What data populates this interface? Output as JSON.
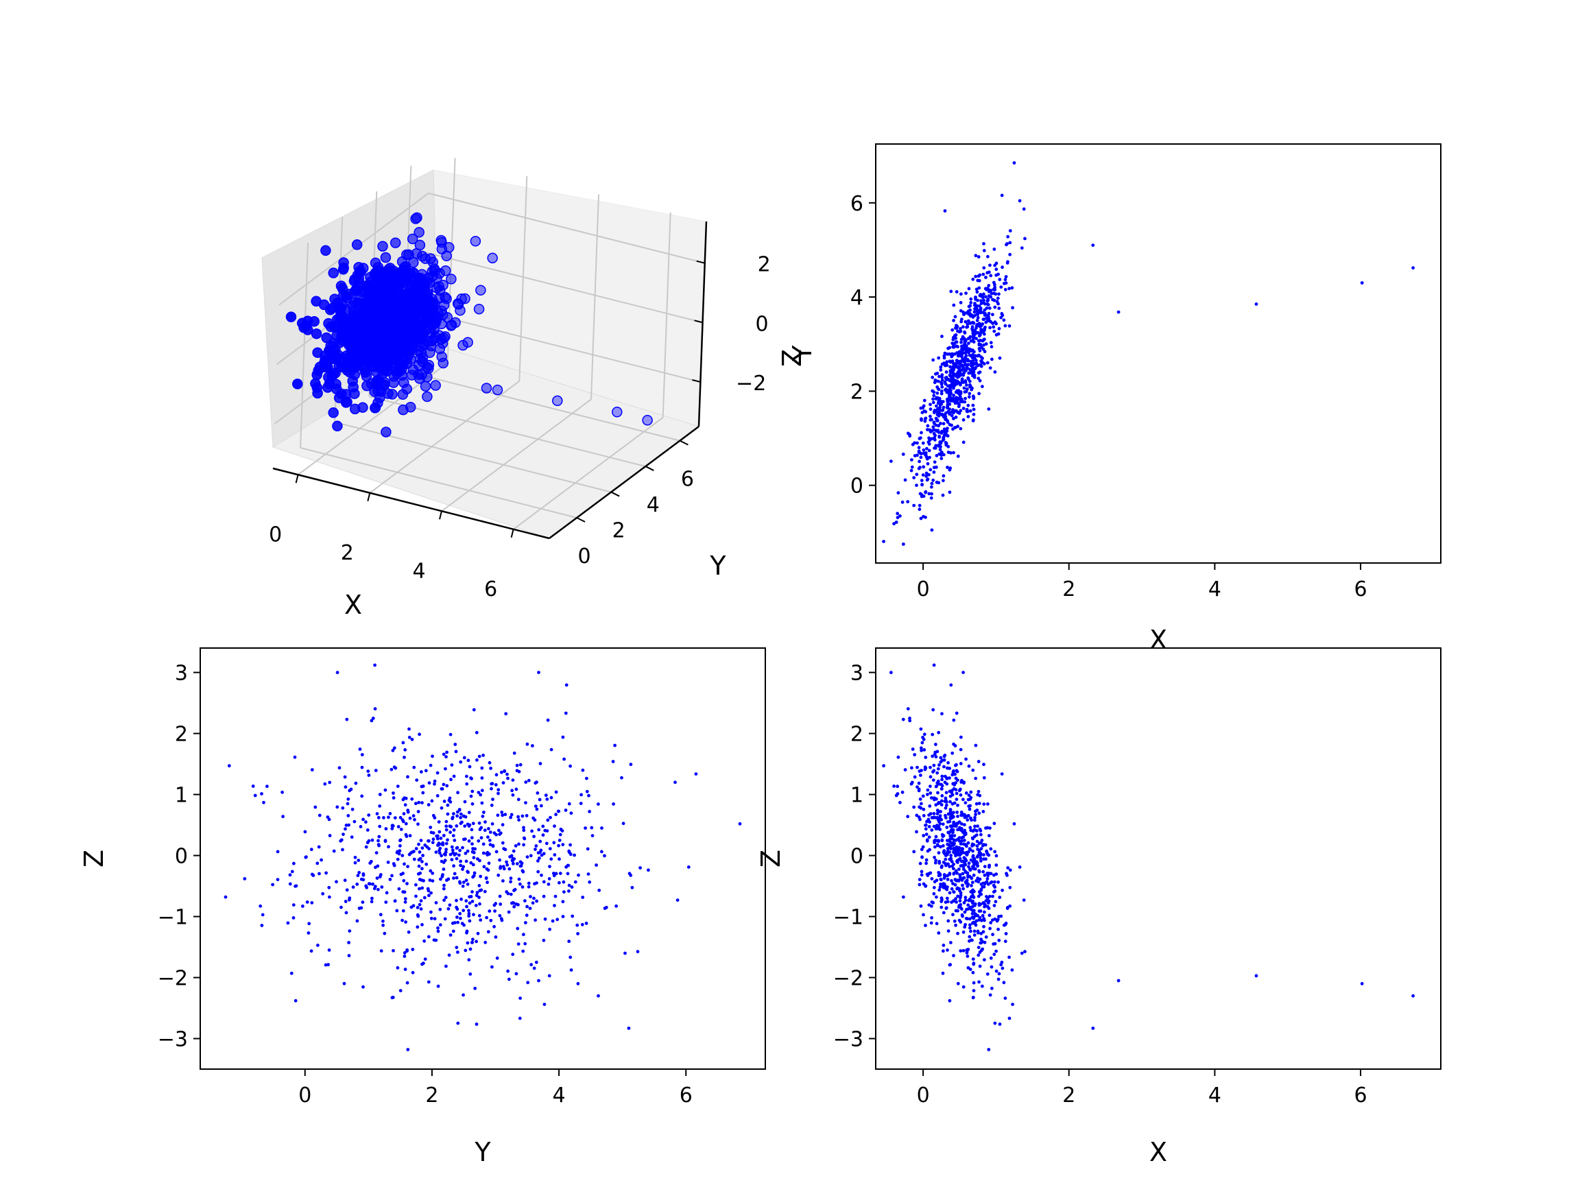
{
  "chart_data": [
    {
      "id": "p3d",
      "type": "scatter3d",
      "xlabel": "X",
      "ylabel": "Y",
      "zlabel": "Z",
      "x_ticks": [
        0,
        2,
        4,
        6
      ],
      "y_ticks": [
        0,
        2,
        4,
        6
      ],
      "z_ticks": [
        -2,
        0,
        2
      ],
      "z_tick_labels": [
        "−2",
        "0",
        "2"
      ],
      "xlim": [
        -0.7,
        7.0
      ],
      "ylim": [
        -1.6,
        7.1
      ],
      "zlim": [
        -3.5,
        3.4
      ],
      "color": "#0000ff",
      "grid": true
    },
    {
      "id": "pxy",
      "type": "scatter",
      "xlabel": "X",
      "ylabel": "Y",
      "xlim": [
        -0.65,
        7.1
      ],
      "ylim": [
        -1.65,
        7.25
      ],
      "x_ticks": [
        0,
        2,
        4,
        6
      ],
      "y_ticks": [
        0,
        2,
        4,
        6
      ],
      "color": "#0000ff"
    },
    {
      "id": "pyz",
      "type": "scatter",
      "xlabel": "Y",
      "ylabel": "Z",
      "xlim": [
        -1.65,
        7.25
      ],
      "ylim": [
        -3.5,
        3.4
      ],
      "x_ticks": [
        0,
        2,
        4,
        6
      ],
      "y_ticks": [
        3,
        2,
        1,
        0,
        -1,
        -2,
        -3
      ],
      "y_tick_labels": [
        "3",
        "2",
        "1",
        "0",
        "−1",
        "−2",
        "−3"
      ],
      "color": "#0000ff"
    },
    {
      "id": "pxz",
      "type": "scatter",
      "xlabel": "X",
      "ylabel": "Z",
      "xlim": [
        -0.65,
        7.1
      ],
      "ylim": [
        -3.5,
        3.4
      ],
      "x_ticks": [
        0,
        2,
        4,
        6
      ],
      "y_ticks": [
        3,
        2,
        1,
        0,
        -1,
        -2,
        -3
      ],
      "y_tick_labels": [
        "3",
        "2",
        "1",
        "0",
        "−1",
        "−2",
        "−3"
      ],
      "color": "#0000ff"
    }
  ],
  "points": {
    "n_sampled": 900,
    "distribution": {
      "x_mean": 0.5,
      "x_std": 0.32,
      "y_mean": 2.4,
      "y_std": 1.25,
      "z_mean": 0.0,
      "z_std": 1.0,
      "corr_xy": 0.85,
      "corr_xz": -0.55,
      "corr_yz": 0.0
    },
    "outliers": [
      {
        "x": 2.33,
        "y": 5.1,
        "z": -2.83
      },
      {
        "x": 2.68,
        "y": 3.68,
        "z": -2.05
      },
      {
        "x": 4.57,
        "y": 3.85,
        "z": -1.97
      },
      {
        "x": 6.02,
        "y": 4.3,
        "z": -2.1
      },
      {
        "x": 6.72,
        "y": 4.62,
        "z": -2.3
      },
      {
        "x": 1.25,
        "y": 6.85,
        "z": 0.52
      },
      {
        "x": -0.27,
        "y": -1.25,
        "z": -0.68
      },
      {
        "x": 0.15,
        "y": 1.1,
        "z": 3.12
      },
      {
        "x": 0.9,
        "y": 1.62,
        "z": -3.18
      },
      {
        "x": 0.3,
        "y": 5.83,
        "z": 1.2
      },
      {
        "x": 0.55,
        "y": 3.68,
        "z": 3.0
      },
      {
        "x": 0.12,
        "y": -0.95,
        "z": -0.38
      }
    ]
  }
}
